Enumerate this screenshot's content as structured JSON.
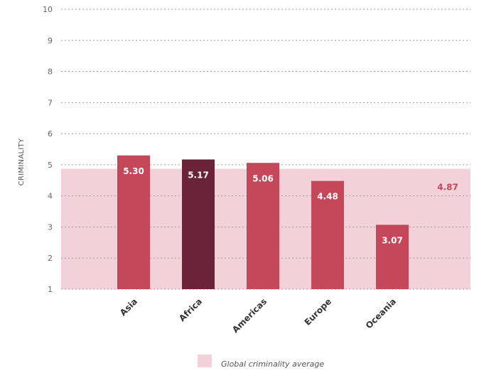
{
  "chart_data": {
    "type": "bar",
    "ylabel": "CRIMINALITY",
    "ylim": [
      1,
      10
    ],
    "yticks": [
      "1",
      "2",
      "3",
      "4",
      "5",
      "6",
      "7",
      "8",
      "9",
      "10"
    ],
    "grid": true,
    "categories": [
      "Asia",
      "Africa",
      "Americas",
      "Europe",
      "Oceania"
    ],
    "values": [
      5.3,
      5.17,
      5.06,
      4.48,
      3.07
    ],
    "value_labels": [
      "5.30",
      "5.17",
      "5.06",
      "4.48",
      "3.07"
    ],
    "bar_colors": [
      "#c5475a",
      "#6b2339",
      "#c5475a",
      "#c5475a",
      "#c5475a"
    ],
    "reference_band": {
      "value": 4.87,
      "value_label": "4.87",
      "legend": "Global criminality average",
      "color": "#f3d1d8",
      "label_color": "#c5475a"
    },
    "legend_placement": "bottom"
  }
}
